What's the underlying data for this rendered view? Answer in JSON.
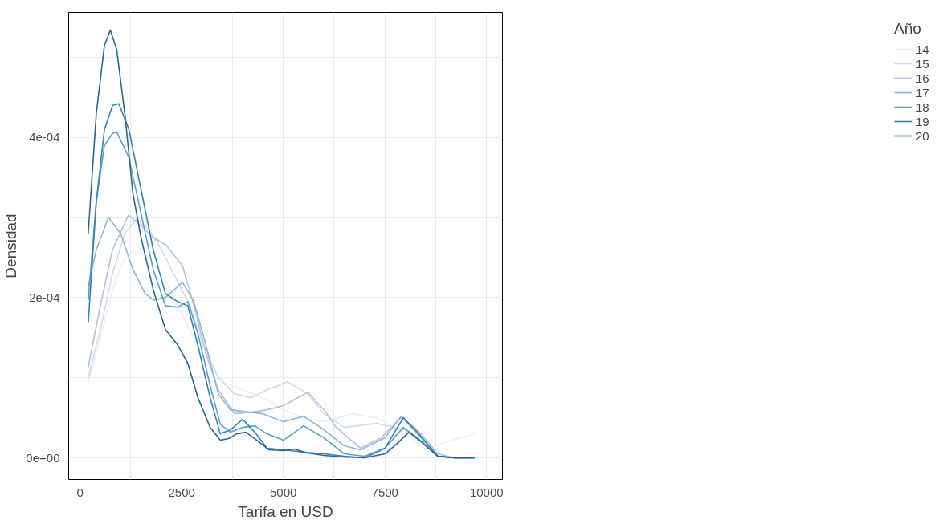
{
  "chart_data": {
    "type": "line",
    "xlabel": "Tarifa en USD",
    "ylabel": "Densidad",
    "legend_title": "Año",
    "legend": "right",
    "grid": true,
    "line_style": "solid",
    "xlim": [
      -280,
      10390
    ],
    "ylim": [
      -2.7e-05,
      0.000556
    ],
    "xticks": [
      0,
      {
        "value": 1250,
        "label": null
      },
      2500,
      {
        "value": 3750,
        "label": null
      },
      5000,
      {
        "value": 6250,
        "label": null
      },
      7500,
      {
        "value": 8750,
        "label": null
      },
      10000
    ],
    "yticks": [
      {
        "value": 0,
        "label": "0e+00"
      },
      {
        "value": 0.0001,
        "label": null
      },
      {
        "value": 0.0002,
        "label": "2e-04"
      },
      {
        "value": 0.0003,
        "label": null
      },
      {
        "value": 0.0004,
        "label": "4e-04"
      },
      {
        "value": 0.0005,
        "label": null
      }
    ],
    "series": [
      {
        "name": "14",
        "color": "#eceef6",
        "x": [
          200,
          500,
          800,
          1050,
          1330,
          1700,
          2100,
          2500,
          3000,
          3500,
          4000,
          4500,
          5000,
          5500,
          6000,
          6700,
          7300,
          8000,
          8500,
          9000,
          9700
        ],
        "values": [
          9.5e-05,
          0.00015,
          0.00021,
          0.000245,
          0.00026,
          0.00025,
          0.00022,
          0.00018,
          0.00013,
          9.5e-05,
          8.5e-05,
          7.5e-05,
          6e-05,
          5e-05,
          4.5e-05,
          5.5e-05,
          5e-05,
          3e-05,
          1e-05,
          2e-05,
          3e-05
        ]
      },
      {
        "name": "15",
        "color": "#d5d9ea",
        "x": [
          200,
          500,
          800,
          1100,
          1390,
          1700,
          2000,
          2400,
          2700,
          3000,
          3400,
          3800,
          4200,
          4600,
          5100,
          5600,
          6000,
          6500,
          7300,
          8000,
          8500,
          8800,
          9200,
          9700
        ],
        "values": [
          0.0001,
          0.00016,
          0.00023,
          0.00028,
          0.000298,
          0.000285,
          0.00026,
          0.00022,
          0.00019,
          0.000145,
          0.0001,
          8e-05,
          7.5e-05,
          8.5e-05,
          9.5e-05,
          8e-05,
          5.5e-05,
          3.8e-05,
          4.3e-05,
          3.5e-05,
          1.5e-05,
          5e-06,
          0,
          0
        ]
      },
      {
        "name": "16",
        "color": "#b3c2dc",
        "x": [
          200,
          500,
          800,
          1190,
          1500,
          1800,
          2110,
          2520,
          2800,
          3100,
          3400,
          3800,
          4200,
          4600,
          5000,
          5600,
          6000,
          6300,
          6900,
          7400,
          7900,
          8300,
          8800,
          9200,
          9700
        ],
        "values": [
          0.000113,
          0.00019,
          0.00026,
          0.000303,
          0.00029,
          0.000275,
          0.000266,
          0.00024,
          0.00019,
          0.00013,
          8.5e-05,
          5.5e-05,
          5.7e-05,
          6e-05,
          6.5e-05,
          8.2e-05,
          6e-05,
          3.8e-05,
          1.2e-05,
          2.5e-05,
          5e-05,
          3.5e-05,
          5e-06,
          0,
          0
        ]
      },
      {
        "name": "17",
        "color": "#8cb6d4",
        "x": [
          200,
          400,
          700,
          1000,
          1300,
          1600,
          1810,
          2100,
          2520,
          2800,
          3100,
          3400,
          3700,
          4000,
          4500,
          5000,
          5500,
          6000,
          6500,
          6900,
          7500,
          7900,
          8300,
          8800,
          9200,
          9700
        ],
        "values": [
          0.000214,
          0.00026,
          0.0003,
          0.00028,
          0.000235,
          0.000205,
          0.000197,
          0.0002,
          0.000219,
          0.000195,
          0.00014,
          8e-05,
          6e-05,
          5.8e-05,
          5.5e-05,
          4.5e-05,
          5.2e-05,
          3.5e-05,
          1.5e-05,
          1e-05,
          2.5e-05,
          5.2e-05,
          3e-05,
          2e-06,
          0,
          0
        ]
      },
      {
        "name": "18",
        "color": "#5aa2cb",
        "x": [
          200,
          400,
          600,
          800,
          900,
          1200,
          1500,
          1800,
          2100,
          2400,
          2650,
          2900,
          3200,
          3450,
          3700,
          4000,
          4300,
          4600,
          5000,
          5500,
          6000,
          6500,
          7000,
          7500,
          7950,
          8300,
          8800,
          9200,
          9700
        ],
        "values": [
          0.000197,
          0.00032,
          0.00039,
          0.000405,
          0.000407,
          0.000375,
          0.000305,
          0.000235,
          0.00019,
          0.000188,
          0.000195,
          0.000155,
          9e-05,
          4.2e-05,
          3.2e-05,
          3.8e-05,
          4e-05,
          3e-05,
          2.2e-05,
          4e-05,
          2.5e-05,
          5e-06,
          2e-06,
          1.2e-05,
          3.8e-05,
          2.5e-05,
          2e-06,
          0,
          0
        ]
      },
      {
        "name": "19",
        "color": "#2f84b8",
        "x": [
          200,
          400,
          600,
          800,
          955,
          1200,
          1500,
          1800,
          2100,
          2400,
          2650,
          2900,
          3200,
          3450,
          3700,
          4000,
          4300,
          4600,
          5000,
          5500,
          6000,
          6500,
          7000,
          7500,
          7950,
          8300,
          8800,
          9200,
          9700
        ],
        "values": [
          0.000168,
          0.00032,
          0.00041,
          0.00044,
          0.000442,
          0.00041,
          0.000335,
          0.00026,
          0.000205,
          0.000195,
          0.00019,
          0.00014,
          7.5e-05,
          3e-05,
          3.5e-05,
          4.8e-05,
          3.2e-05,
          1.2e-05,
          1e-05,
          7e-06,
          5e-06,
          2e-06,
          0,
          1.2e-05,
          5e-05,
          3.2e-05,
          2e-06,
          0,
          0
        ]
      },
      {
        "name": "20",
        "color": "#2a6889",
        "x": [
          200,
          400,
          600,
          745,
          900,
          1100,
          1300,
          1500,
          1800,
          2100,
          2400,
          2650,
          2900,
          3200,
          3450,
          3650,
          3850,
          4080,
          4350,
          4650,
          5000,
          5260,
          5600,
          6000,
          6500,
          7000,
          7500,
          7800,
          8090,
          8400,
          8800,
          9200,
          9700
        ],
        "values": [
          0.00028,
          0.00043,
          0.000515,
          0.000534,
          0.00051,
          0.00043,
          0.00033,
          0.000275,
          0.00021,
          0.00016,
          0.000141,
          0.000118,
          7.5e-05,
          3.8e-05,
          2.2e-05,
          2.4e-05,
          3e-05,
          3.2e-05,
          2.2e-05,
          1e-05,
          9e-06,
          1.1e-05,
          6e-06,
          3e-06,
          1e-06,
          0,
          5e-06,
          1.8e-05,
          3.2e-05,
          2e-05,
          2e-06,
          0,
          0
        ]
      }
    ]
  }
}
